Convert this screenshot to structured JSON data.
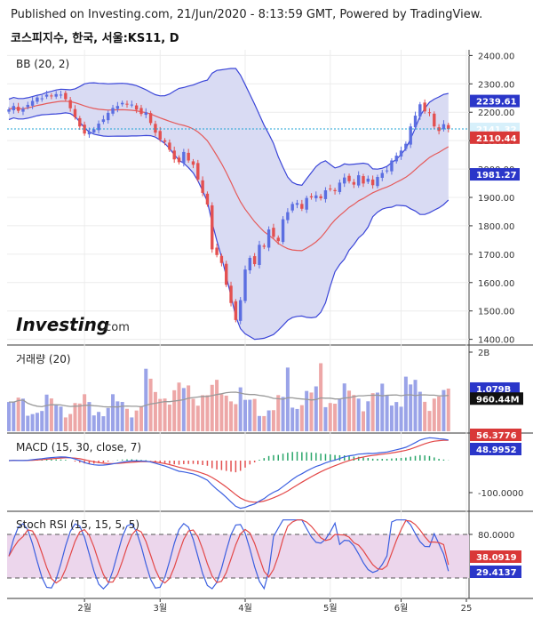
{
  "header": {
    "publisher_line": "Published on Investing.com, 21/Jun/2020 - 8:13:59 GMT, Powered by TradingView.",
    "symbol_line": "코스피지수, 한국, 서울:KS11, D"
  },
  "logo": {
    "text": "Investing",
    "suffix": ".com"
  },
  "colors": {
    "up": "#5b6ee1",
    "down": "#e35050",
    "band": "#3b46d8",
    "band_fill": "#d9dbf3",
    "basis": "#e55a5a",
    "vol_up": "#9aa3e8",
    "vol_down": "#eda7a7",
    "vol_ma": "#999999",
    "macd": "#3b5fe0",
    "signal": "#e34848",
    "stoch_k": "#3b5fe0",
    "stoch_d": "#e34848",
    "stoch_bg": "#ecd6ec",
    "price_line": "#1fa3d6"
  },
  "chart_data": [
    {
      "type": "candlestick",
      "title": "BB (20, 2)",
      "x_ticks": [
        "2월",
        "3월",
        "4월",
        "5월",
        "6월",
        "25"
      ],
      "ylim": [
        1380,
        2420
      ],
      "y_ticks": [
        "2400.00",
        "2300.00",
        "2200.00",
        "2100.00",
        "2000.00",
        "1900.00",
        "1800.00",
        "1700.00",
        "1600.00",
        "1500.00",
        "1400.00"
      ],
      "close": [
        2210,
        2222,
        2205,
        2212,
        2226,
        2240,
        2252,
        2249,
        2262,
        2258,
        2264,
        2262,
        2246,
        2214,
        2182,
        2150,
        2125,
        2132,
        2140,
        2160,
        2175,
        2198,
        2215,
        2222,
        2233,
        2228,
        2227,
        2209,
        2194,
        2200,
        2162,
        2128,
        2104,
        2096,
        2068,
        2034,
        2024,
        2060,
        2030,
        2015,
        1963,
        1916,
        1875,
        1717,
        1697,
        1669,
        1592,
        1528,
        1468,
        1538,
        1646,
        1687,
        1665,
        1733,
        1726,
        1787,
        1761,
        1746,
        1823,
        1848,
        1877,
        1880,
        1860,
        1898,
        1900,
        1907,
        1897,
        1925,
        1929,
        1922,
        1952,
        1970,
        1957,
        1945,
        1978,
        1949,
        1966,
        1943,
        1972,
        1986,
        1995,
        2030,
        2047,
        2065,
        2089,
        2150,
        2188,
        2228,
        2203,
        2198,
        2150,
        2134,
        2158,
        2141
      ],
      "bb_upper_end": "2239.61",
      "basis_end": "2110.44",
      "bb_lower_end": "1981.27",
      "last_price": "2141.32"
    },
    {
      "type": "bar",
      "title": "거래량 (20)",
      "ylim": [
        0,
        2000000000
      ],
      "y_ticks": [
        "2B"
      ],
      "ma_value": "1.079B",
      "last_value": "960.44M"
    },
    {
      "type": "line",
      "title": "MACD (15, 30, close, 7)",
      "y_ticks": [
        "-100.0000"
      ],
      "values": [
        "56.3776",
        "48.9952",
        "-7.3824"
      ]
    },
    {
      "type": "line",
      "title": "Stoch RSI (15, 15, 5, 5)",
      "ylim": [
        0,
        100
      ],
      "y_ticks": [
        "80.0000"
      ],
      "values": [
        "38.0919",
        "29.4137"
      ]
    }
  ]
}
